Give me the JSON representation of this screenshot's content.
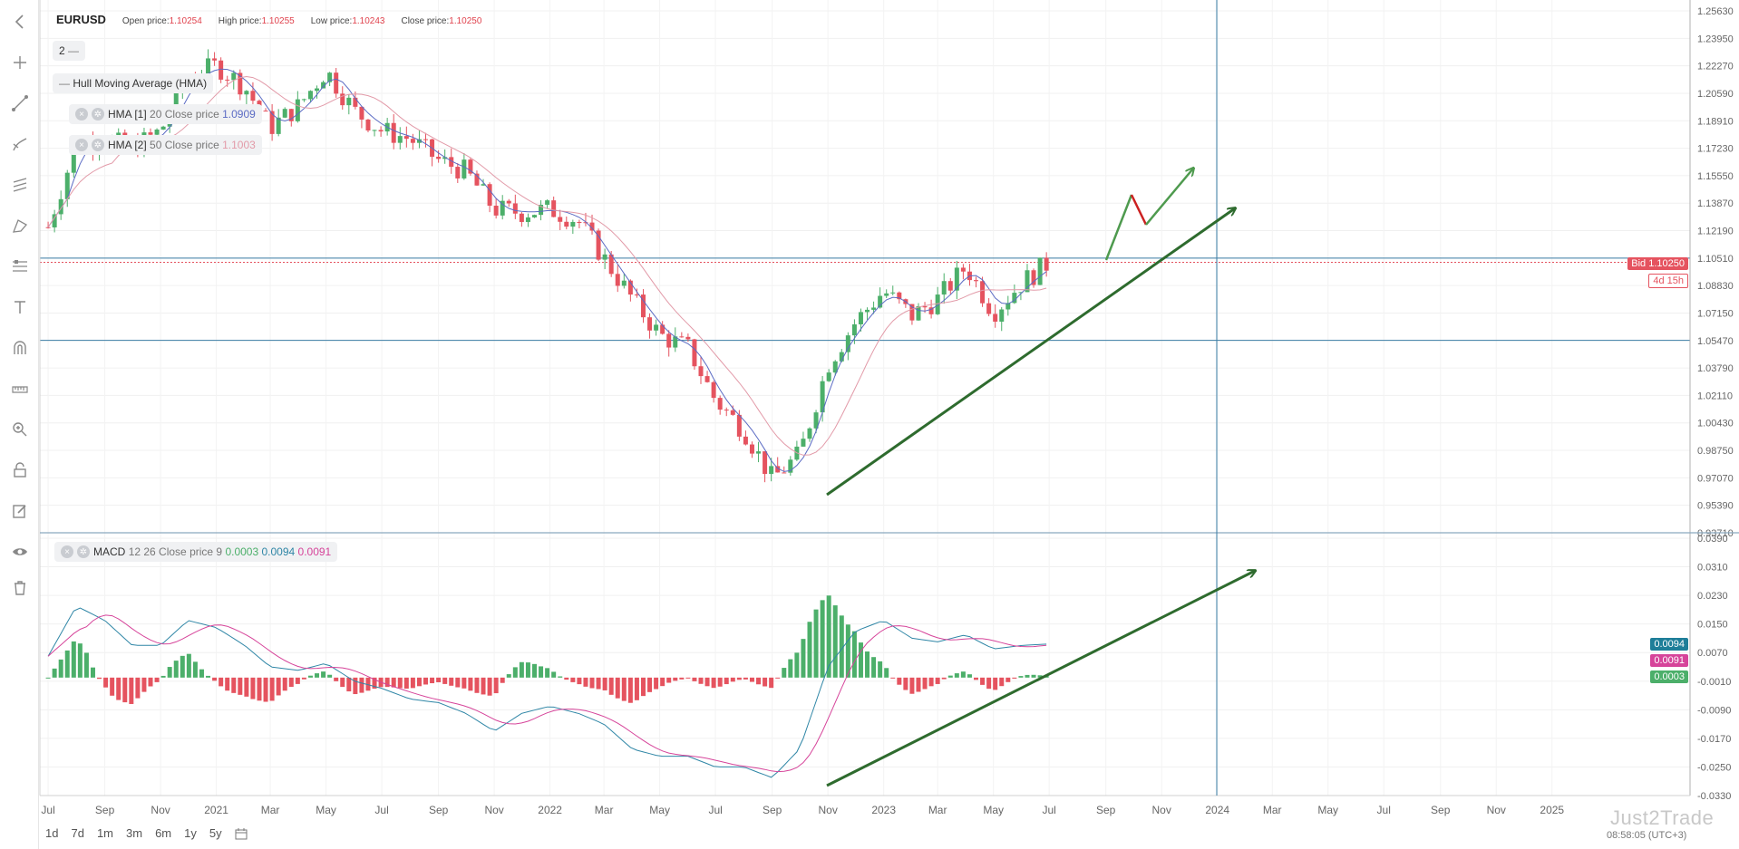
{
  "header": {
    "symbol": "EURUSD",
    "open_label": "Open price:",
    "open_value": "1.10254",
    "high_label": "High price:",
    "high_value": "1.10255",
    "low_label": "Low price:",
    "low_value": "1.10243",
    "close_label": "Close price:",
    "close_value": "1.10250"
  },
  "indicators_panel": {
    "count": "2",
    "dash": "—",
    "group_name": "Hull Moving Average (HMA)",
    "hma1_name": "HMA [1]",
    "hma1_params": "20 Close price",
    "hma1_value": "1.0909",
    "hma2_name": "HMA [2]",
    "hma2_params": "50 Close price",
    "hma2_value": "1.1003"
  },
  "macd_panel": {
    "name": "MACD",
    "params": "12 26 Close price 9",
    "hist_value": "0.0003",
    "macd_value": "0.0094",
    "signal_value": "0.0091"
  },
  "price_badges": {
    "bid": "Bid 1.10250",
    "countdown": "4d 15h"
  },
  "macd_badges": {
    "macd": "0.0094",
    "signal": "0.0091",
    "hist": "0.0003"
  },
  "timeframes": [
    "1d",
    "7d",
    "1m",
    "3m",
    "6m",
    "1y",
    "5y"
  ],
  "watermark": "Just2Trade",
  "clock": "08:58:05 (UTC+3)",
  "colors": {
    "bull": "#4caf6a",
    "bear": "#e5535f",
    "hma_fast": "#5b6bc4",
    "hma_slow": "#e29aa8",
    "macd_line": "#2f86a6",
    "signal_line": "#d6449a",
    "trend_arrow": "#2e6b2e",
    "forecast": "#4e9a4e",
    "forecast_red": "#cc2020",
    "crosshair": "#3a7ca5"
  },
  "toolbar_icons": [
    "back-icon",
    "crosshair-icon",
    "trendline-icon",
    "brush-icon",
    "channel-icon",
    "pattern-icon",
    "fibonacci-icon",
    "text-icon",
    "magnet-icon",
    "measure-icon",
    "zoom-icon",
    "lock-icon",
    "edit-icon",
    "eye-icon",
    "trash-icon"
  ],
  "chart_data": [
    {
      "type": "candlestick",
      "title": "EURUSD",
      "y_ticks": [
        "1.25630",
        "1.23950",
        "1.22270",
        "1.20590",
        "1.18910",
        "1.17230",
        "1.15550",
        "1.13870",
        "1.12190",
        "1.10510",
        "1.08830",
        "1.07150",
        "1.05470",
        "1.03790",
        "1.02110",
        "1.00430",
        "0.98750",
        "0.97070",
        "0.95390",
        "0.93710"
      ],
      "ylim": [
        0.9371,
        1.2563
      ],
      "x_ticks": [
        "Jul",
        "Sep",
        "Nov",
        "2021",
        "Mar",
        "May",
        "Jul",
        "Sep",
        "Nov",
        "2022",
        "Mar",
        "May",
        "Jul",
        "Sep",
        "Nov",
        "2023",
        "Mar",
        "May",
        "Jul",
        "Sep",
        "Nov",
        "2024",
        "Mar",
        "May",
        "Jul",
        "Sep",
        "Nov",
        "2025"
      ],
      "horizontal_levels": [
        1.0548,
        1.1051
      ],
      "last_price": 1.1025,
      "close_path": [
        [
          "2020-07-01",
          1.124
        ],
        [
          "2020-08-01",
          1.175
        ],
        [
          "2020-09-01",
          1.178
        ],
        [
          "2020-10-01",
          1.172
        ],
        [
          "2020-11-01",
          1.183
        ],
        [
          "2020-12-01",
          1.215
        ],
        [
          "2021-01-01",
          1.223
        ],
        [
          "2021-02-01",
          1.21
        ],
        [
          "2021-03-01",
          1.185
        ],
        [
          "2021-04-01",
          1.198
        ],
        [
          "2021-05-01",
          1.22
        ],
        [
          "2021-06-01",
          1.195
        ],
        [
          "2021-07-01",
          1.183
        ],
        [
          "2021-08-01",
          1.178
        ],
        [
          "2021-09-01",
          1.165
        ],
        [
          "2021-10-01",
          1.158
        ],
        [
          "2021-11-01",
          1.135
        ],
        [
          "2021-12-01",
          1.133
        ],
        [
          "2022-01-01",
          1.135
        ],
        [
          "2022-02-01",
          1.128
        ],
        [
          "2022-03-01",
          1.105
        ],
        [
          "2022-04-01",
          1.08
        ],
        [
          "2022-05-01",
          1.058
        ],
        [
          "2022-06-01",
          1.05
        ],
        [
          "2022-07-01",
          1.018
        ],
        [
          "2022-08-01",
          1.0
        ],
        [
          "2022-09-01",
          0.97
        ],
        [
          "2022-10-01",
          0.985
        ],
        [
          "2022-11-01",
          1.04
        ],
        [
          "2022-12-01",
          1.066
        ],
        [
          "2023-01-01",
          1.085
        ],
        [
          "2023-02-01",
          1.07
        ],
        [
          "2023-03-01",
          1.08
        ],
        [
          "2023-04-01",
          1.1
        ],
        [
          "2023-05-01",
          1.072
        ],
        [
          "2023-06-01",
          1.09
        ],
        [
          "2023-07-01",
          1.1025
        ]
      ]
    },
    {
      "type": "macd",
      "y_ticks": [
        "0.0390",
        "0.0310",
        "0.0230",
        "0.0150",
        "0.0070",
        "-0.0010",
        "-0.0090",
        "-0.0170",
        "-0.0250",
        "-0.0330"
      ],
      "ylim": [
        -0.033,
        0.039
      ],
      "macd_path": [
        [
          "2020-07-01",
          0.006
        ],
        [
          "2020-08-01",
          0.02
        ],
        [
          "2020-09-01",
          0.016
        ],
        [
          "2020-10-01",
          0.009
        ],
        [
          "2020-11-01",
          0.009
        ],
        [
          "2020-12-01",
          0.016
        ],
        [
          "2021-01-01",
          0.014
        ],
        [
          "2021-02-01",
          0.009
        ],
        [
          "2021-03-01",
          0.003
        ],
        [
          "2021-04-01",
          0.002
        ],
        [
          "2021-05-01",
          0.004
        ],
        [
          "2021-06-01",
          -0.001
        ],
        [
          "2021-07-01",
          -0.003
        ],
        [
          "2021-08-01",
          -0.006
        ],
        [
          "2021-09-01",
          -0.007
        ],
        [
          "2021-10-01",
          -0.01
        ],
        [
          "2021-11-01",
          -0.015
        ],
        [
          "2021-12-01",
          -0.01
        ],
        [
          "2022-01-01",
          -0.008
        ],
        [
          "2022-02-01",
          -0.01
        ],
        [
          "2022-03-01",
          -0.013
        ],
        [
          "2022-04-01",
          -0.02
        ],
        [
          "2022-05-01",
          -0.022
        ],
        [
          "2022-06-01",
          -0.022
        ],
        [
          "2022-07-01",
          -0.025
        ],
        [
          "2022-08-01",
          -0.025
        ],
        [
          "2022-09-01",
          -0.028
        ],
        [
          "2022-10-01",
          -0.02
        ],
        [
          "2022-11-01",
          0.003
        ],
        [
          "2022-12-01",
          0.013
        ],
        [
          "2023-01-01",
          0.016
        ],
        [
          "2023-02-01",
          0.011
        ],
        [
          "2023-03-01",
          0.01
        ],
        [
          "2023-04-01",
          0.012
        ],
        [
          "2023-05-01",
          0.008
        ],
        [
          "2023-06-01",
          0.009
        ],
        [
          "2023-07-01",
          0.0094
        ]
      ]
    }
  ]
}
